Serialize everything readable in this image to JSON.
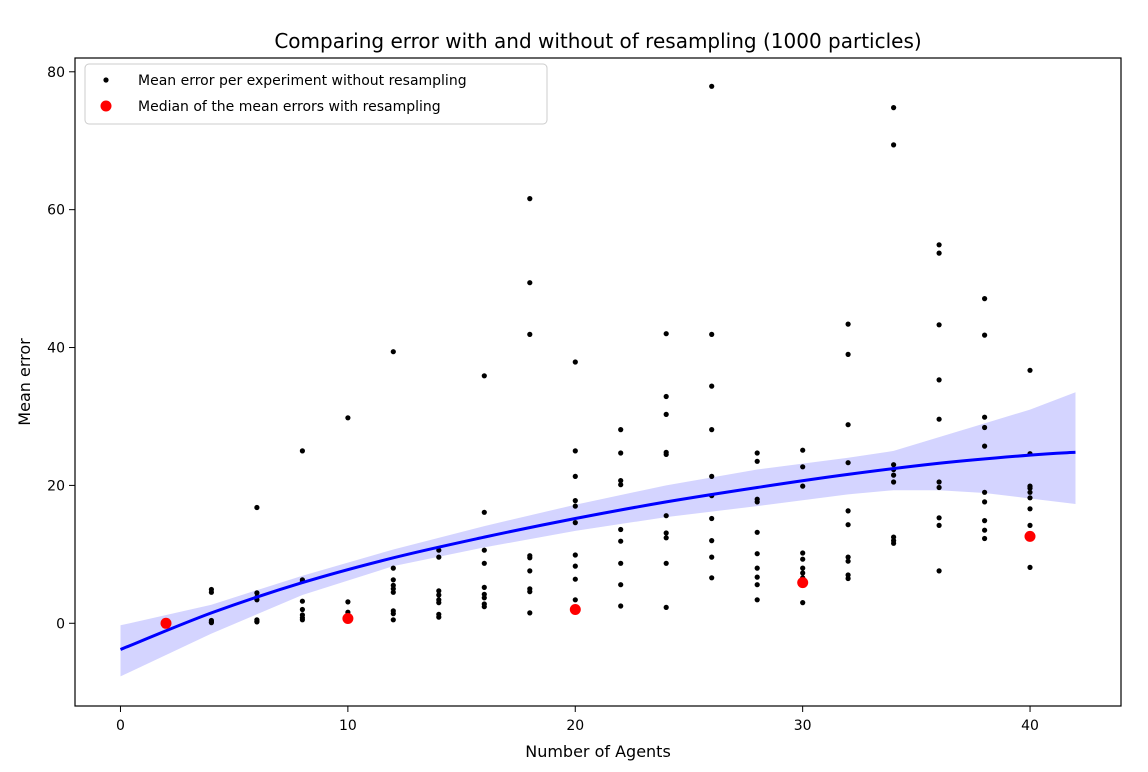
{
  "chart_data": {
    "type": "scatter",
    "title": "Comparing error with and without of resampling (1000 particles)",
    "xlabel": "Number of Agents",
    "ylabel": "Mean error",
    "xlim": [
      -2,
      44
    ],
    "ylim": [
      -12,
      82
    ],
    "xticks": [
      0,
      10,
      20,
      30,
      40
    ],
    "yticks": [
      0,
      20,
      40,
      60,
      80
    ],
    "grid": false,
    "legend_position": "top-left",
    "series": [
      {
        "name": "Mean error per experiment without resampling",
        "kind": "scatter",
        "color": "#000000",
        "points": [
          [
            4,
            4.9
          ],
          [
            4,
            4.5
          ],
          [
            4,
            0.4
          ],
          [
            4,
            0.2
          ],
          [
            4,
            0.1
          ],
          [
            6,
            16.8
          ],
          [
            6,
            4.4
          ],
          [
            6,
            3.8
          ],
          [
            6,
            3.4
          ],
          [
            6,
            0.5
          ],
          [
            6,
            0.3
          ],
          [
            6,
            0.2
          ],
          [
            8,
            25.0
          ],
          [
            8,
            6.3
          ],
          [
            8,
            6.1
          ],
          [
            8,
            3.2
          ],
          [
            8,
            2.0
          ],
          [
            8,
            1.2
          ],
          [
            8,
            0.8
          ],
          [
            8,
            0.5
          ],
          [
            10,
            29.8
          ],
          [
            10,
            3.1
          ],
          [
            10,
            1.6
          ],
          [
            12,
            39.4
          ],
          [
            12,
            8.0
          ],
          [
            12,
            6.3
          ],
          [
            12,
            5.5
          ],
          [
            12,
            5.0
          ],
          [
            12,
            4.5
          ],
          [
            12,
            1.8
          ],
          [
            12,
            1.4
          ],
          [
            12,
            0.5
          ],
          [
            14,
            10.6
          ],
          [
            14,
            9.6
          ],
          [
            14,
            4.7
          ],
          [
            14,
            4.1
          ],
          [
            14,
            3.4
          ],
          [
            14,
            3.0
          ],
          [
            14,
            1.3
          ],
          [
            14,
            0.9
          ],
          [
            16,
            35.9
          ],
          [
            16,
            16.1
          ],
          [
            16,
            10.6
          ],
          [
            16,
            8.7
          ],
          [
            16,
            5.2
          ],
          [
            16,
            4.2
          ],
          [
            16,
            3.7
          ],
          [
            16,
            2.8
          ],
          [
            16,
            2.4
          ],
          [
            18,
            61.6
          ],
          [
            18,
            49.4
          ],
          [
            18,
            41.9
          ],
          [
            18,
            9.8
          ],
          [
            18,
            9.5
          ],
          [
            18,
            7.6
          ],
          [
            18,
            5.0
          ],
          [
            18,
            4.6
          ],
          [
            18,
            1.5
          ],
          [
            20,
            37.9
          ],
          [
            20,
            25.0
          ],
          [
            20,
            21.3
          ],
          [
            20,
            17.8
          ],
          [
            20,
            17.0
          ],
          [
            20,
            14.6
          ],
          [
            20,
            9.9
          ],
          [
            20,
            8.3
          ],
          [
            20,
            6.4
          ],
          [
            20,
            3.4
          ],
          [
            22,
            28.1
          ],
          [
            22,
            24.7
          ],
          [
            22,
            20.7
          ],
          [
            22,
            20.1
          ],
          [
            22,
            13.6
          ],
          [
            22,
            11.9
          ],
          [
            22,
            8.7
          ],
          [
            22,
            5.6
          ],
          [
            22,
            2.5
          ],
          [
            24,
            42.0
          ],
          [
            24,
            32.9
          ],
          [
            24,
            30.3
          ],
          [
            24,
            24.8
          ],
          [
            24,
            24.5
          ],
          [
            24,
            15.6
          ],
          [
            24,
            13.1
          ],
          [
            24,
            12.4
          ],
          [
            24,
            8.7
          ],
          [
            24,
            2.3
          ],
          [
            26,
            77.9
          ],
          [
            26,
            41.9
          ],
          [
            26,
            34.4
          ],
          [
            26,
            28.1
          ],
          [
            26,
            21.3
          ],
          [
            26,
            18.5
          ],
          [
            26,
            15.2
          ],
          [
            26,
            12.0
          ],
          [
            26,
            9.6
          ],
          [
            26,
            6.6
          ],
          [
            28,
            24.7
          ],
          [
            28,
            23.5
          ],
          [
            28,
            18.0
          ],
          [
            28,
            17.6
          ],
          [
            28,
            13.2
          ],
          [
            28,
            10.1
          ],
          [
            28,
            8.0
          ],
          [
            28,
            6.7
          ],
          [
            28,
            5.6
          ],
          [
            28,
            3.4
          ],
          [
            30,
            25.1
          ],
          [
            30,
            22.7
          ],
          [
            30,
            19.9
          ],
          [
            30,
            10.2
          ],
          [
            30,
            9.3
          ],
          [
            30,
            8.0
          ],
          [
            30,
            7.3
          ],
          [
            30,
            6.6
          ],
          [
            30,
            3.0
          ],
          [
            32,
            43.4
          ],
          [
            32,
            39.0
          ],
          [
            32,
            28.8
          ],
          [
            32,
            23.3
          ],
          [
            32,
            16.3
          ],
          [
            32,
            14.3
          ],
          [
            32,
            9.6
          ],
          [
            32,
            9.0
          ],
          [
            32,
            7.0
          ],
          [
            32,
            6.5
          ],
          [
            34,
            74.8
          ],
          [
            34,
            69.4
          ],
          [
            34,
            23.0
          ],
          [
            34,
            22.3
          ],
          [
            34,
            21.5
          ],
          [
            34,
            20.5
          ],
          [
            34,
            12.5
          ],
          [
            34,
            12.0
          ],
          [
            34,
            11.6
          ],
          [
            36,
            54.9
          ],
          [
            36,
            53.7
          ],
          [
            36,
            43.3
          ],
          [
            36,
            35.3
          ],
          [
            36,
            29.6
          ],
          [
            36,
            20.5
          ],
          [
            36,
            19.7
          ],
          [
            36,
            15.3
          ],
          [
            36,
            14.2
          ],
          [
            36,
            7.6
          ],
          [
            38,
            47.1
          ],
          [
            38,
            41.8
          ],
          [
            38,
            29.9
          ],
          [
            38,
            28.4
          ],
          [
            38,
            25.7
          ],
          [
            38,
            19.0
          ],
          [
            38,
            17.6
          ],
          [
            38,
            14.9
          ],
          [
            38,
            13.5
          ],
          [
            38,
            12.3
          ],
          [
            40,
            36.7
          ],
          [
            40,
            24.6
          ],
          [
            40,
            19.9
          ],
          [
            40,
            19.6
          ],
          [
            40,
            19.0
          ],
          [
            40,
            18.2
          ],
          [
            40,
            16.6
          ],
          [
            40,
            14.2
          ],
          [
            40,
            8.1
          ]
        ]
      },
      {
        "name": "Median of the mean errors with resampling",
        "kind": "scatter",
        "color": "#ff0000",
        "points": [
          [
            2,
            0.0
          ],
          [
            10,
            0.7
          ],
          [
            20,
            2.0
          ],
          [
            30,
            5.9
          ],
          [
            40,
            12.6
          ]
        ]
      },
      {
        "kind": "fit-line",
        "color": "#0000ff",
        "points": [
          [
            0,
            -3.8
          ],
          [
            4,
            1.5
          ],
          [
            8,
            5.9
          ],
          [
            12,
            9.5
          ],
          [
            16,
            12.5
          ],
          [
            20,
            15.2
          ],
          [
            24,
            17.6
          ],
          [
            28,
            19.7
          ],
          [
            32,
            21.6
          ],
          [
            36,
            23.2
          ],
          [
            40,
            24.4
          ],
          [
            42,
            24.8
          ]
        ]
      },
      {
        "kind": "confidence-band",
        "color": "#0000ff",
        "upper": [
          [
            0,
            -0.3
          ],
          [
            4,
            2.7
          ],
          [
            8,
            6.9
          ],
          [
            12,
            10.7
          ],
          [
            16,
            14.1
          ],
          [
            20,
            17.2
          ],
          [
            24,
            20.0
          ],
          [
            28,
            22.3
          ],
          [
            32,
            24.0
          ],
          [
            34,
            25.0
          ],
          [
            36,
            27.0
          ],
          [
            38,
            29.0
          ],
          [
            40,
            31.0
          ],
          [
            42,
            33.5
          ]
        ],
        "lower": [
          [
            0,
            -7.7
          ],
          [
            4,
            -1.5
          ],
          [
            8,
            4.1
          ],
          [
            12,
            8.3
          ],
          [
            16,
            11.0
          ],
          [
            20,
            13.4
          ],
          [
            24,
            15.4
          ],
          [
            28,
            17.0
          ],
          [
            32,
            18.7
          ],
          [
            34,
            19.3
          ],
          [
            36,
            19.3
          ],
          [
            38,
            18.9
          ],
          [
            40,
            18.1
          ],
          [
            42,
            17.3
          ]
        ]
      }
    ]
  }
}
